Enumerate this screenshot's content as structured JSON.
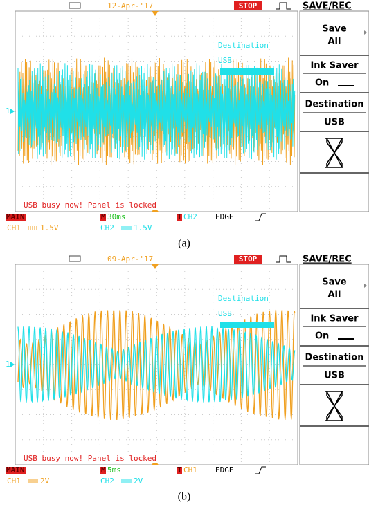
{
  "screens": [
    {
      "date": "12-Apr-'17",
      "status": "STOP",
      "menu_title": "SAVE/REC",
      "menu": [
        {
          "line1": "Save",
          "line2": "All"
        },
        {
          "line1": "Ink Saver",
          "line2": "On"
        },
        {
          "line1": "Destination",
          "line2": "USB"
        }
      ],
      "overlay": [
        "Destination",
        "USB"
      ],
      "marker": "1",
      "message": "USB busy now! Panel is locked",
      "mode": "MAIN",
      "timebase_tag": "M",
      "timebase": "30ms",
      "trigger_tag": "T",
      "trigger_source": "CH2",
      "trigger_type": "EDGE",
      "ch1": {
        "name": "CH1",
        "scale": "1.5V"
      },
      "ch2": {
        "name": "CH2",
        "scale": "1.5V"
      },
      "caption": "(a)"
    },
    {
      "date": "09-Apr-'17",
      "status": "STOP",
      "menu_title": "SAVE/REC",
      "menu": [
        {
          "line1": "Save",
          "line2": "All"
        },
        {
          "line1": "Ink Saver",
          "line2": "On"
        },
        {
          "line1": "Destination",
          "line2": "USB"
        }
      ],
      "overlay": [
        "Destination",
        "USB"
      ],
      "marker": "1",
      "message": "USB busy now! Panel is locked",
      "mode": "MAIN",
      "timebase_tag": "M",
      "timebase": "5ms",
      "trigger_tag": "T",
      "trigger_source": "CH1",
      "trigger_type": "EDGE",
      "ch1": {
        "name": "CH1",
        "scale": "2V"
      },
      "ch2": {
        "name": "CH2",
        "scale": "2V"
      },
      "caption": "(b)"
    }
  ]
}
